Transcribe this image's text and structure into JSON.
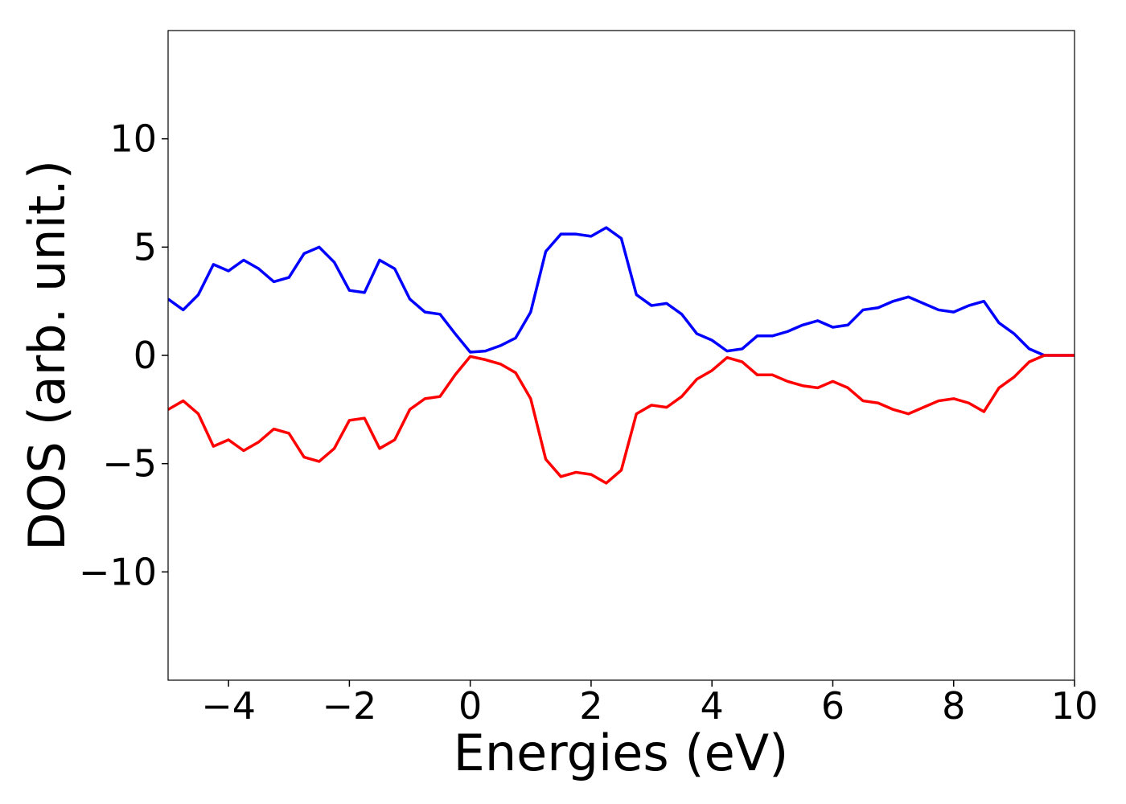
{
  "chart_data": {
    "type": "line",
    "xlabel": "Energies (eV)",
    "ylabel": "DOS (arb. unit.)",
    "x": [
      -5,
      -4.75,
      -4.5,
      -4.25,
      -4,
      -3.75,
      -3.5,
      -3.25,
      -3,
      -2.75,
      -2.5,
      -2.25,
      -2,
      -1.75,
      -1.5,
      -1.25,
      -1,
      -0.75,
      -0.5,
      -0.25,
      0,
      0.25,
      0.5,
      0.75,
      1,
      1.25,
      1.5,
      1.75,
      2,
      2.25,
      2.5,
      2.75,
      3,
      3.25,
      3.5,
      3.75,
      4,
      4.25,
      4.5,
      4.75,
      5,
      5.25,
      5.5,
      5.75,
      6,
      6.25,
      6.5,
      6.75,
      7,
      7.25,
      7.5,
      7.75,
      8,
      8.25,
      8.5,
      8.75,
      9,
      9.25,
      9.5,
      9.75,
      10
    ],
    "series": [
      {
        "color": "#0000ff",
        "values": [
          2.6,
          2.1,
          2.8,
          4.2,
          3.9,
          4.4,
          4.0,
          3.4,
          3.6,
          4.7,
          5.0,
          4.3,
          3.0,
          2.9,
          4.4,
          4.0,
          2.6,
          2.0,
          1.9,
          1.0,
          0.15,
          0.2,
          0.45,
          0.8,
          2.0,
          4.8,
          5.6,
          5.6,
          5.5,
          5.9,
          5.4,
          2.8,
          2.3,
          2.4,
          1.9,
          1.0,
          0.7,
          0.2,
          0.3,
          0.9,
          0.9,
          1.1,
          1.4,
          1.6,
          1.3,
          1.4,
          2.1,
          2.2,
          2.5,
          2.7,
          2.4,
          2.1,
          2.0,
          2.3,
          2.5,
          1.5,
          1.0,
          0.3,
          0,
          0,
          0
        ]
      },
      {
        "color": "#ff0000",
        "values": [
          -2.5,
          -2.1,
          -2.7,
          -4.2,
          -3.9,
          -4.4,
          -4.0,
          -3.4,
          -3.6,
          -4.7,
          -4.9,
          -4.3,
          -3.0,
          -2.9,
          -4.3,
          -3.9,
          -2.5,
          -2.0,
          -1.9,
          -0.9,
          -0.05,
          -0.2,
          -0.4,
          -0.8,
          -2.0,
          -4.8,
          -5.6,
          -5.4,
          -5.5,
          -5.9,
          -5.3,
          -2.7,
          -2.3,
          -2.4,
          -1.9,
          -1.1,
          -0.7,
          -0.1,
          -0.3,
          -0.9,
          -0.9,
          -1.2,
          -1.4,
          -1.5,
          -1.2,
          -1.5,
          -2.1,
          -2.2,
          -2.5,
          -2.7,
          -2.4,
          -2.1,
          -2.0,
          -2.2,
          -2.6,
          -1.5,
          -1.0,
          -0.3,
          0,
          0,
          0
        ]
      }
    ],
    "xlim": [
      -5,
      10
    ],
    "xticks": [
      {
        "value": -4,
        "label": "−4"
      },
      {
        "value": -2,
        "label": "−2"
      },
      0,
      2,
      4,
      6,
      8,
      10
    ],
    "ylim": [
      -15,
      15
    ],
    "yticks": [
      {
        "value": -10,
        "label": "−10"
      },
      {
        "value": -5,
        "label": "−5"
      },
      0,
      5,
      10
    ],
    "grid": false
  }
}
